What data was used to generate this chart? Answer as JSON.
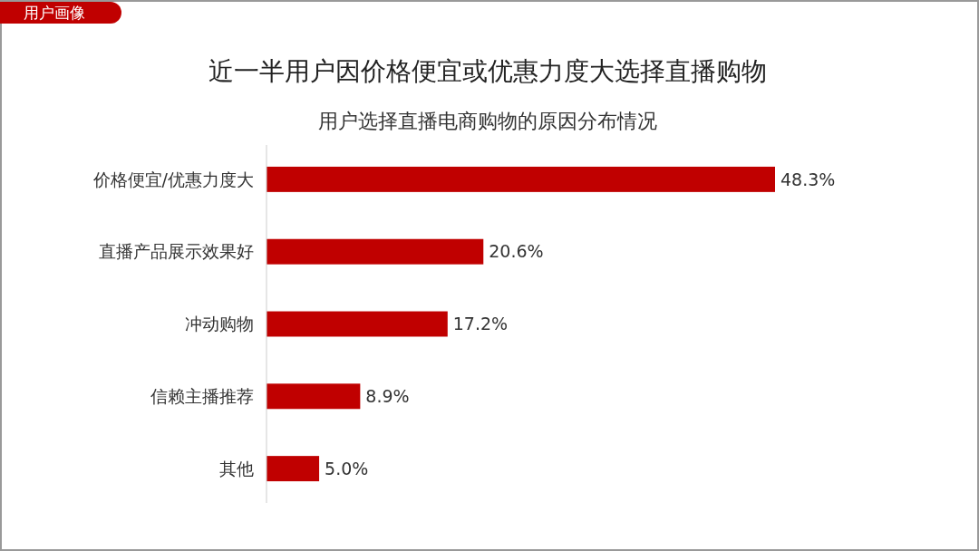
{
  "chart_data": {
    "type": "bar",
    "orientation": "horizontal",
    "title": "近一半用户因价格便宜或优惠力度大选择直播购物",
    "subtitle": "用户选择直播电商购物的原因分布情况",
    "categories": [
      "价格便宜/优惠力度大",
      "直播产品展示效果好",
      "冲动购物",
      "信赖主播推荐",
      "其他"
    ],
    "values": [
      48.3,
      20.6,
      17.2,
      8.9,
      5.0
    ],
    "value_labels": [
      "48.3%",
      "20.6%",
      "17.2%",
      "8.9%",
      "5.0%"
    ],
    "color": "#c00000",
    "annotations": [
      "用户画像"
    ]
  }
}
